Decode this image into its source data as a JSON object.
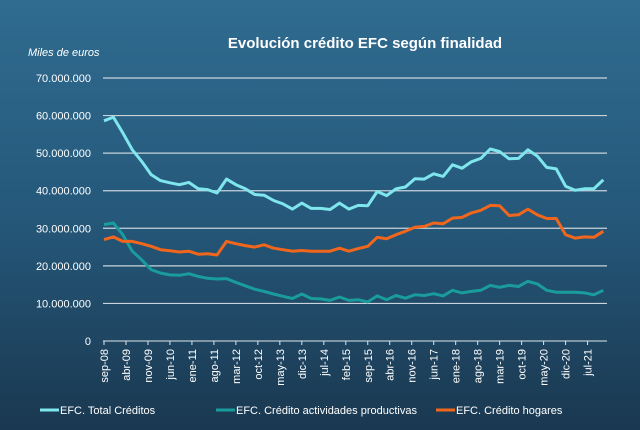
{
  "chart_data": {
    "type": "line",
    "title": "Evolución crédito EFC según finalidad",
    "ylabel": "Miles de euros",
    "ylim": [
      0,
      70000000
    ],
    "yticks": [
      "0",
      "10.000.000",
      "20.000.000",
      "30.000.000",
      "40.000.000",
      "50.000.000",
      "60.000.000",
      "70.000.000"
    ],
    "xtick_labels": [
      "sep-08",
      "abr-09",
      "nov-09",
      "jun-10",
      "ene-11",
      "ago-11",
      "mar-12",
      "oct-12",
      "may-13",
      "dic-13",
      "jul-14",
      "feb-15",
      "sep-15",
      "abr-16",
      "nov-16",
      "jun-17",
      "ene-18",
      "ago-18",
      "mar-19",
      "oct-19",
      "may-20",
      "dic-20",
      "jul-21"
    ],
    "grid": true,
    "legend_position": "bottom",
    "x": [
      "sep-08",
      "dic-08",
      "mar-09",
      "jun-09",
      "sep-09",
      "dic-09",
      "mar-10",
      "jun-10",
      "sep-10",
      "dic-10",
      "mar-11",
      "jun-11",
      "sep-11",
      "dic-11",
      "mar-12",
      "jun-12",
      "sep-12",
      "dic-12",
      "mar-13",
      "jun-13",
      "sep-13",
      "dic-13",
      "mar-14",
      "jun-14",
      "sep-14",
      "dic-14",
      "mar-15",
      "jun-15",
      "sep-15",
      "dic-15",
      "mar-16",
      "jun-16",
      "sep-16",
      "dic-16",
      "mar-17",
      "jun-17",
      "sep-17",
      "dic-17",
      "mar-18",
      "jun-18",
      "sep-18",
      "dic-18",
      "mar-19",
      "jun-19",
      "sep-19",
      "dic-19",
      "mar-20",
      "jun-20",
      "sep-20",
      "dic-20",
      "mar-21",
      "jun-21",
      "sep-21",
      "dic-21"
    ],
    "series": [
      {
        "name": "EFC. Total Créditos",
        "color": "#7fe6ee",
        "values": [
          58600000,
          59600000,
          55400000,
          50900000,
          47800000,
          44300000,
          42700000,
          42100000,
          41600000,
          42200000,
          40500000,
          40300000,
          39400000,
          43100000,
          41600000,
          40500000,
          39000000,
          38800000,
          37400000,
          36500000,
          35100000,
          36700000,
          35300000,
          35300000,
          35000000,
          36700000,
          35100000,
          36100000,
          36000000,
          39800000,
          38700000,
          40500000,
          41000000,
          43200000,
          43100000,
          44500000,
          43800000,
          46900000,
          46000000,
          47700000,
          48600000,
          51100000,
          50400000,
          48500000,
          48600000,
          50900000,
          49200000,
          46200000,
          45800000,
          41200000,
          40100000,
          40500000,
          40500000,
          42900000
        ]
      },
      {
        "name": "EFC. Crédito actividades productivas",
        "color": "#1a9c9c",
        "values": [
          31000000,
          31400000,
          28300000,
          23900000,
          21600000,
          19000000,
          18100000,
          17600000,
          17500000,
          17900000,
          17200000,
          16700000,
          16500000,
          16600000,
          15600000,
          14700000,
          13800000,
          13200000,
          12500000,
          11900000,
          11300000,
          12500000,
          11300000,
          11200000,
          10800000,
          11700000,
          10800000,
          11000000,
          10400000,
          12000000,
          11000000,
          12100000,
          11400000,
          12300000,
          12100000,
          12600000,
          12000000,
          13500000,
          12800000,
          13200000,
          13500000,
          14800000,
          14300000,
          14800000,
          14500000,
          15900000,
          15200000,
          13500000,
          13000000,
          13000000,
          13000000,
          12800000,
          12300000,
          13500000
        ]
      },
      {
        "name": "EFC. Crédito hogares",
        "color": "#f0661c",
        "values": [
          27000000,
          27700000,
          26500000,
          26500000,
          25900000,
          25200000,
          24300000,
          24000000,
          23700000,
          23900000,
          23100000,
          23200000,
          22900000,
          26500000,
          25900000,
          25400000,
          25000000,
          25600000,
          24700000,
          24300000,
          23900000,
          24100000,
          23900000,
          23900000,
          23900000,
          24700000,
          23900000,
          24600000,
          25200000,
          27600000,
          27200000,
          28300000,
          29200000,
          30300000,
          30500000,
          31400000,
          31200000,
          32700000,
          32900000,
          34100000,
          34800000,
          36100000,
          36000000,
          33400000,
          33600000,
          35100000,
          33600000,
          32600000,
          32600000,
          28300000,
          27400000,
          27700000,
          27600000,
          29200000
        ]
      }
    ]
  }
}
